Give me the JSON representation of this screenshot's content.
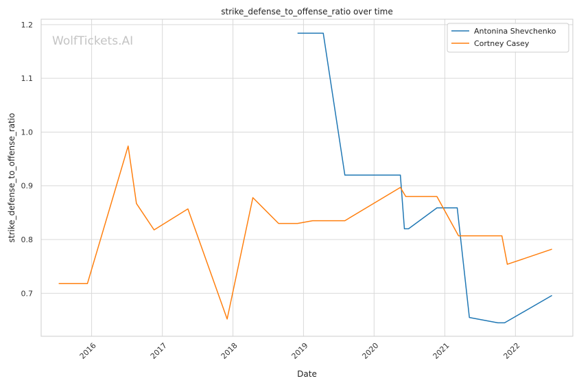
{
  "chart_data": {
    "type": "line",
    "title": "strike_defense_to_offense_ratio over time",
    "xlabel": "Date",
    "ylabel": "strike_defense_to_offense_ratio",
    "watermark": "WolfTickets.AI",
    "xlim": [
      "2015-04-15",
      "2022-10-25"
    ],
    "ylim": [
      0.62,
      1.21
    ],
    "x_ticks": [
      "2016",
      "2017",
      "2018",
      "2019",
      "2020",
      "2021",
      "2022"
    ],
    "y_ticks": [
      "0.7",
      "0.8",
      "0.9",
      "1.0",
      "1.1",
      "1.2"
    ],
    "grid": true,
    "legend_position": "top-right",
    "series": [
      {
        "name": "Antonina Shevchenko",
        "color": "#1f77b4",
        "points": [
          [
            "2018-12-01",
            1.184
          ],
          [
            "2019-04-13",
            1.184
          ],
          [
            "2019-08-03",
            0.92
          ],
          [
            "2020-05-16",
            0.92
          ],
          [
            "2020-06-06",
            0.82
          ],
          [
            "2020-06-27",
            0.82
          ],
          [
            "2020-11-21",
            0.859
          ],
          [
            "2021-03-06",
            0.859
          ],
          [
            "2021-05-08",
            0.655
          ],
          [
            "2021-10-02",
            0.645
          ],
          [
            "2021-11-06",
            0.645
          ],
          [
            "2022-07-09",
            0.696
          ]
        ]
      },
      {
        "name": "Cortney Casey",
        "color": "#ff7f0e",
        "points": [
          [
            "2015-07-15",
            0.718
          ],
          [
            "2015-12-10",
            0.718
          ],
          [
            "2016-07-08",
            0.974
          ],
          [
            "2016-08-20",
            0.867
          ],
          [
            "2016-11-19",
            0.818
          ],
          [
            "2017-05-13",
            0.857
          ],
          [
            "2017-12-02",
            0.652
          ],
          [
            "2018-04-14",
            0.878
          ],
          [
            "2018-08-25",
            0.83
          ],
          [
            "2018-12-01",
            0.83
          ],
          [
            "2019-02-17",
            0.835
          ],
          [
            "2019-08-03",
            0.835
          ],
          [
            "2020-05-16",
            0.897
          ],
          [
            "2020-06-13",
            0.88
          ],
          [
            "2020-11-21",
            0.88
          ],
          [
            "2021-03-13",
            0.807
          ],
          [
            "2021-10-23",
            0.807
          ],
          [
            "2021-11-20",
            0.754
          ],
          [
            "2022-07-09",
            0.782
          ]
        ]
      }
    ]
  }
}
